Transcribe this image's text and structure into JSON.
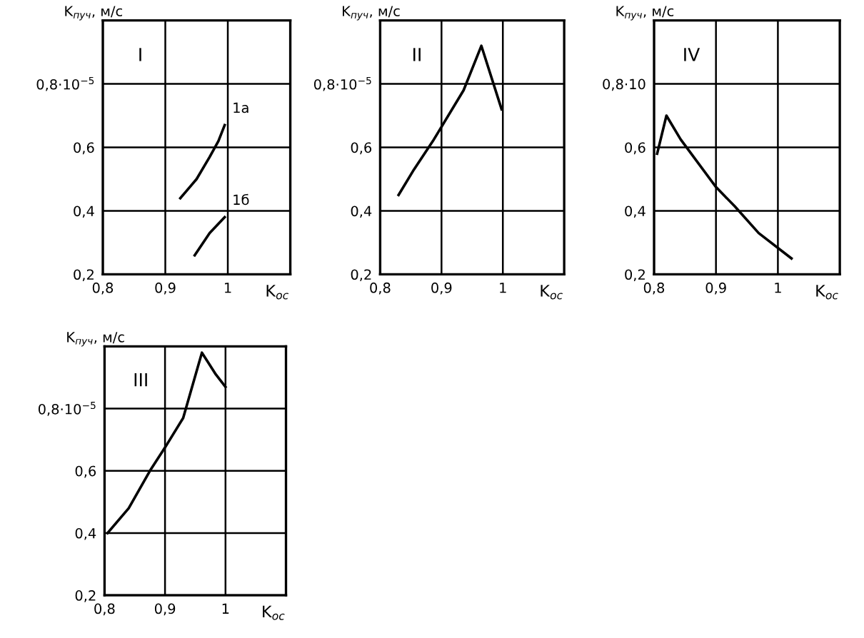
{
  "chart_data": [
    {
      "type": "line",
      "xlabel": "K$_{ос}$",
      "ylabel": "K$_{пуч}$, м/с",
      "annotations": [
        "I"
      ],
      "xlim": [
        0.8,
        1.1
      ],
      "ylim": [
        0.2,
        1.0
      ],
      "xticks": [
        {
          "value": 0.8,
          "label": "0,8"
        },
        {
          "value": 0.9,
          "label": "0,9"
        },
        {
          "value": 1,
          "label": "1"
        }
      ],
      "yticks": [
        {
          "value": 0.2,
          "label": "0,2"
        },
        {
          "value": 0.4,
          "label": "0,4"
        },
        {
          "value": 0.6,
          "label": "0,6"
        },
        {
          "value": 0.8,
          "label": "0,8·10$^{−5}$"
        }
      ],
      "grid": true,
      "series": [
        {
          "name": "1а",
          "color": "#000000",
          "x": [
            0.924,
            0.95,
            0.971,
            0.985,
            0.995
          ],
          "values": [
            0.44,
            0.5,
            0.57,
            0.62,
            0.67
          ]
        },
        {
          "name": "1б",
          "color": "#000000",
          "x": [
            0.947,
            0.971,
            0.995
          ],
          "values": [
            0.26,
            0.33,
            0.38
          ]
        }
      ]
    },
    {
      "type": "line",
      "xlabel": "K$_{ос}$",
      "ylabel": "K$_{пуч}$, м/с",
      "annotations": [
        "II"
      ],
      "xlim": [
        0.8,
        1.1
      ],
      "ylim": [
        0.2,
        1.0
      ],
      "xticks": [
        {
          "value": 0.8,
          "label": "0,8"
        },
        {
          "value": 0.9,
          "label": "0,9"
        },
        {
          "value": 1,
          "label": "1"
        }
      ],
      "yticks": [
        {
          "value": 0.2,
          "label": "0,2"
        },
        {
          "value": 0.4,
          "label": "0,4"
        },
        {
          "value": 0.6,
          "label": "0,6"
        },
        {
          "value": 0.8,
          "label": "0,8·10$^{−5}$"
        }
      ],
      "grid": true,
      "series": [
        {
          "color": "#000000",
          "x": [
            0.83,
            0.855,
            0.886,
            0.936,
            0.965,
            0.998
          ],
          "values": [
            0.45,
            0.53,
            0.62,
            0.78,
            0.92,
            0.72
          ]
        }
      ]
    },
    {
      "type": "line",
      "xlabel": "K$_{ос}$",
      "ylabel": "K$_{пуч}$, м/с",
      "annotations": [
        "IV"
      ],
      "xlim": [
        0.8,
        1.1
      ],
      "ylim": [
        0.2,
        1.0
      ],
      "xticks": [
        {
          "value": 0.8,
          "label": "0,8"
        },
        {
          "value": 0.9,
          "label": "0,9"
        },
        {
          "value": 1,
          "label": "1"
        }
      ],
      "yticks": [
        {
          "value": 0.2,
          "label": "0,2"
        },
        {
          "value": 0.4,
          "label": "0,4"
        },
        {
          "value": 0.6,
          "label": "0,6"
        },
        {
          "value": 0.8,
          "label": "0,8·10"
        }
      ],
      "grid": true,
      "series": [
        {
          "color": "#000000",
          "x": [
            0.805,
            0.82,
            0.843,
            0.9,
            0.93,
            0.969,
            1.022
          ],
          "values": [
            0.58,
            0.7,
            0.625,
            0.475,
            0.415,
            0.33,
            0.25
          ]
        }
      ]
    },
    {
      "type": "line",
      "xlabel": "K$_{ос}$",
      "ylabel": "K$_{пуч}$, м/с",
      "annotations": [
        "III"
      ],
      "xlim": [
        0.8,
        1.1
      ],
      "ylim": [
        0.2,
        1.0
      ],
      "xticks": [
        {
          "value": 0.8,
          "label": "0,8"
        },
        {
          "value": 0.9,
          "label": "0,9"
        },
        {
          "value": 1,
          "label": "1"
        }
      ],
      "yticks": [
        {
          "value": 0.2,
          "label": "0,2"
        },
        {
          "value": 0.4,
          "label": "0,4"
        },
        {
          "value": 0.6,
          "label": "0,6"
        },
        {
          "value": 0.8,
          "label": "0,8·10$^{−5}$"
        }
      ],
      "grid": true,
      "series": [
        {
          "color": "#000000",
          "x": [
            0.805,
            0.84,
            0.875,
            0.9,
            0.93,
            0.961,
            0.984,
            1.0
          ],
          "values": [
            0.4,
            0.48,
            0.6,
            0.675,
            0.77,
            0.98,
            0.91,
            0.87
          ]
        }
      ]
    }
  ]
}
